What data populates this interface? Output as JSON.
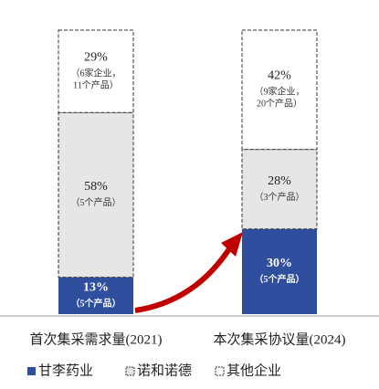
{
  "chart_data": {
    "type": "stacked-bar",
    "categories": [
      "首次集采需求量(2021)",
      "本次集采协议量(2024)"
    ],
    "series": [
      {
        "name": "甘李药业",
        "color": "#2f4f9e",
        "dashed": false,
        "values": [
          13,
          30
        ],
        "value_labels": [
          "13%",
          "30%"
        ],
        "annotations": [
          [
            "（5个产品）"
          ],
          [
            "（5个产品）"
          ]
        ]
      },
      {
        "name": "诺和诺德",
        "color": "#e6e6e6",
        "dashed": true,
        "values": [
          58,
          28
        ],
        "value_labels": [
          "58%",
          "28%"
        ],
        "annotations": [
          [
            "（5个产品）"
          ],
          [
            "（3个产品）"
          ]
        ]
      },
      {
        "name": "其他企业",
        "color": "#ffffff",
        "dashed": true,
        "values": [
          29,
          42
        ],
        "value_labels": [
          "29%",
          "42%"
        ],
        "annotations": [
          [
            "（6家企业，",
            "11个产品）"
          ],
          [
            "（9家企业，",
            "20个产品）"
          ]
        ]
      }
    ]
  }
}
